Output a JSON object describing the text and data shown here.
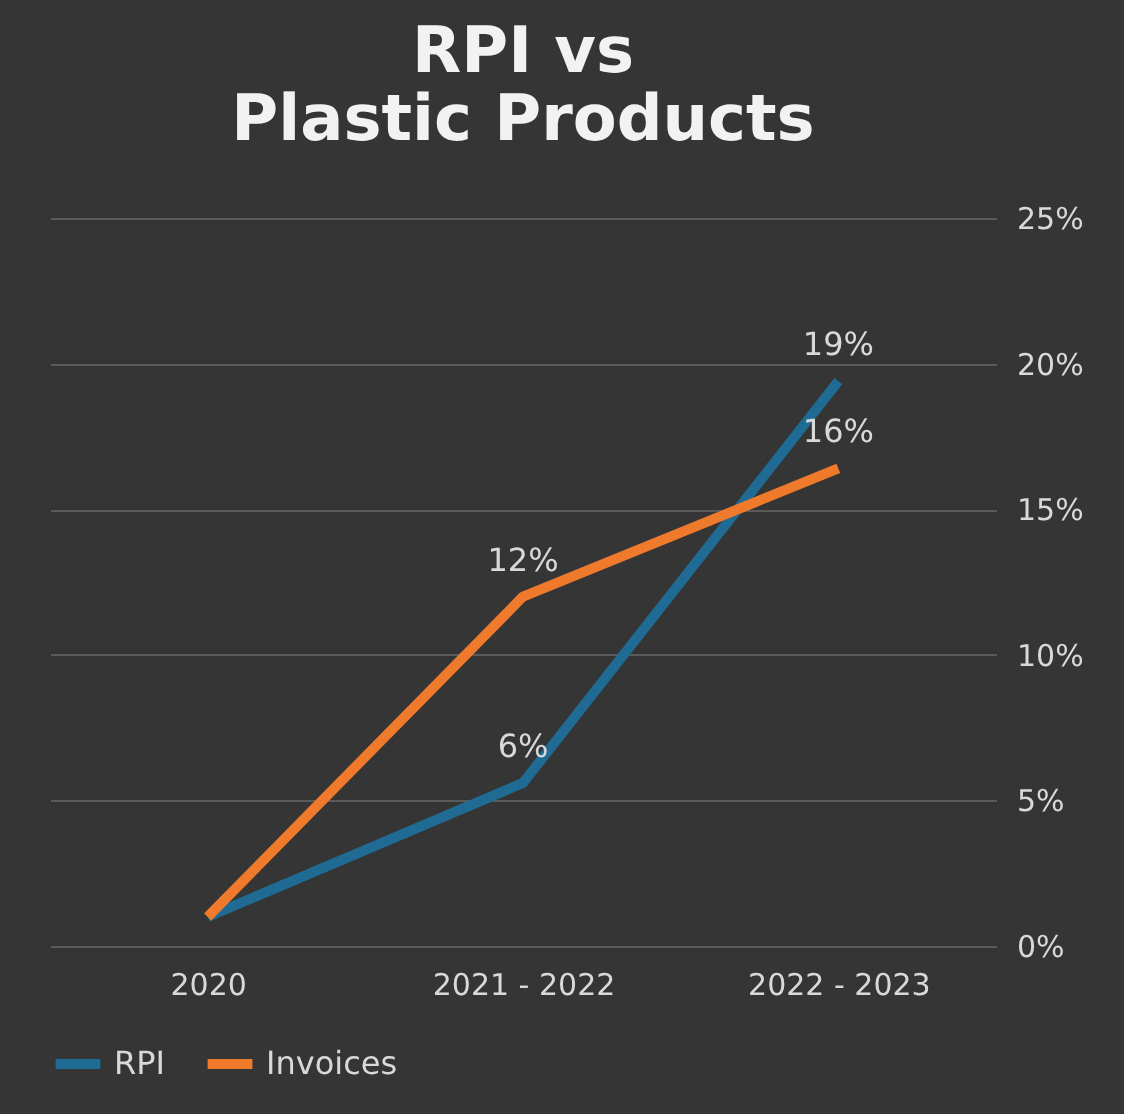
{
  "chart_data": {
    "type": "line",
    "title": "RPI vs\nPlastic Products",
    "categories": [
      "2020",
      "2021 - 2022",
      "2022 - 2023"
    ],
    "series": [
      {
        "name": "RPI",
        "color": "#1f6b94",
        "values": [
          1,
          5.6,
          19.4
        ],
        "value_labels": [
          null,
          "6%",
          "19%"
        ]
      },
      {
        "name": "Invoices",
        "color": "#f07a2c",
        "values": [
          1,
          12,
          16.4
        ],
        "value_labels": [
          null,
          "12%",
          "16%"
        ]
      }
    ],
    "ylim": [
      0,
      25
    ],
    "yticks": [
      {
        "value": 0,
        "label": "0%"
      },
      {
        "value": 5,
        "label": "5%"
      },
      {
        "value": 10,
        "label": "10%"
      },
      {
        "value": 15,
        "label": "15%"
      },
      {
        "value": 20,
        "label": "20%"
      },
      {
        "value": 25,
        "label": "25%"
      }
    ],
    "grid": "y",
    "legend": "bottom",
    "marker": "none",
    "line_style": "solid"
  }
}
